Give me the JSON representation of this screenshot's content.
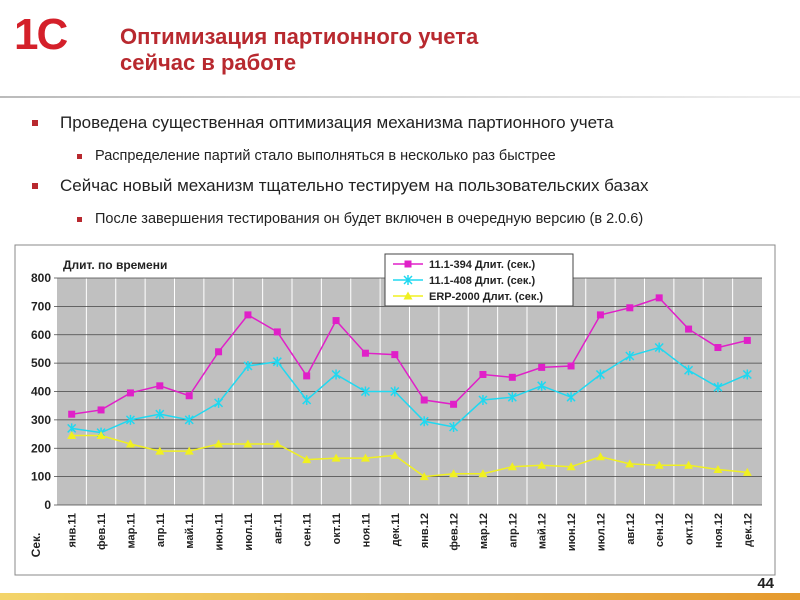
{
  "logo": "1С",
  "header": {
    "title": [
      "Оптимизация партионного учета",
      "сейчас в работе"
    ]
  },
  "bullets": [
    "Проведена существенная оптимизация механизма партионного учета",
    "Распределение партий стало выполняться в несколько раз быстрее",
    "Сейчас новый механизм тщательно тестируем на пользовательских базах",
    "После завершения тестирования он будет включен в очередную версию (в 2.0.6)"
  ],
  "page_number": "44",
  "chart_data": {
    "type": "line",
    "title": "Длит. по времени",
    "y_label": "Сек.",
    "categories": [
      "янв.11",
      "фев.11",
      "мар.11",
      "апр.11",
      "май.11",
      "июн.11",
      "июл.11",
      "авг.11",
      "сен.11",
      "окт.11",
      "ноя.11",
      "дек.11",
      "янв.12",
      "фев.12",
      "мар.12",
      "апр.12",
      "май.12",
      "июн.12",
      "июл.12",
      "авг.12",
      "сен.12",
      "окт.12",
      "ноя.12",
      "дек.12"
    ],
    "series": [
      {
        "name": "11.1-394 Длит. (сек.)",
        "color": "#e020c8",
        "marker": "square",
        "values": [
          320,
          335,
          395,
          420,
          385,
          540,
          670,
          610,
          455,
          650,
          535,
          530,
          370,
          355,
          460,
          450,
          485,
          490,
          670,
          695,
          730,
          620,
          555,
          580
        ]
      },
      {
        "name": "11.1-408 Длит. (сек.)",
        "color": "#20d8f0",
        "marker": "star",
        "values": [
          270,
          255,
          300,
          320,
          300,
          360,
          490,
          505,
          370,
          460,
          400,
          400,
          295,
          275,
          370,
          380,
          420,
          380,
          460,
          525,
          555,
          475,
          415,
          460
        ]
      },
      {
        "name": "ERP-2000 Длит. (сек.)",
        "color": "#f0f020",
        "marker": "triangle",
        "values": [
          245,
          245,
          215,
          190,
          190,
          215,
          215,
          215,
          160,
          165,
          165,
          175,
          100,
          110,
          110,
          135,
          140,
          135,
          170,
          145,
          140,
          140,
          125,
          115
        ]
      }
    ],
    "ylim": [
      0,
      800
    ],
    "yticks": [
      0,
      100,
      200,
      300,
      400,
      500,
      600,
      700,
      800
    ],
    "grid": true
  }
}
